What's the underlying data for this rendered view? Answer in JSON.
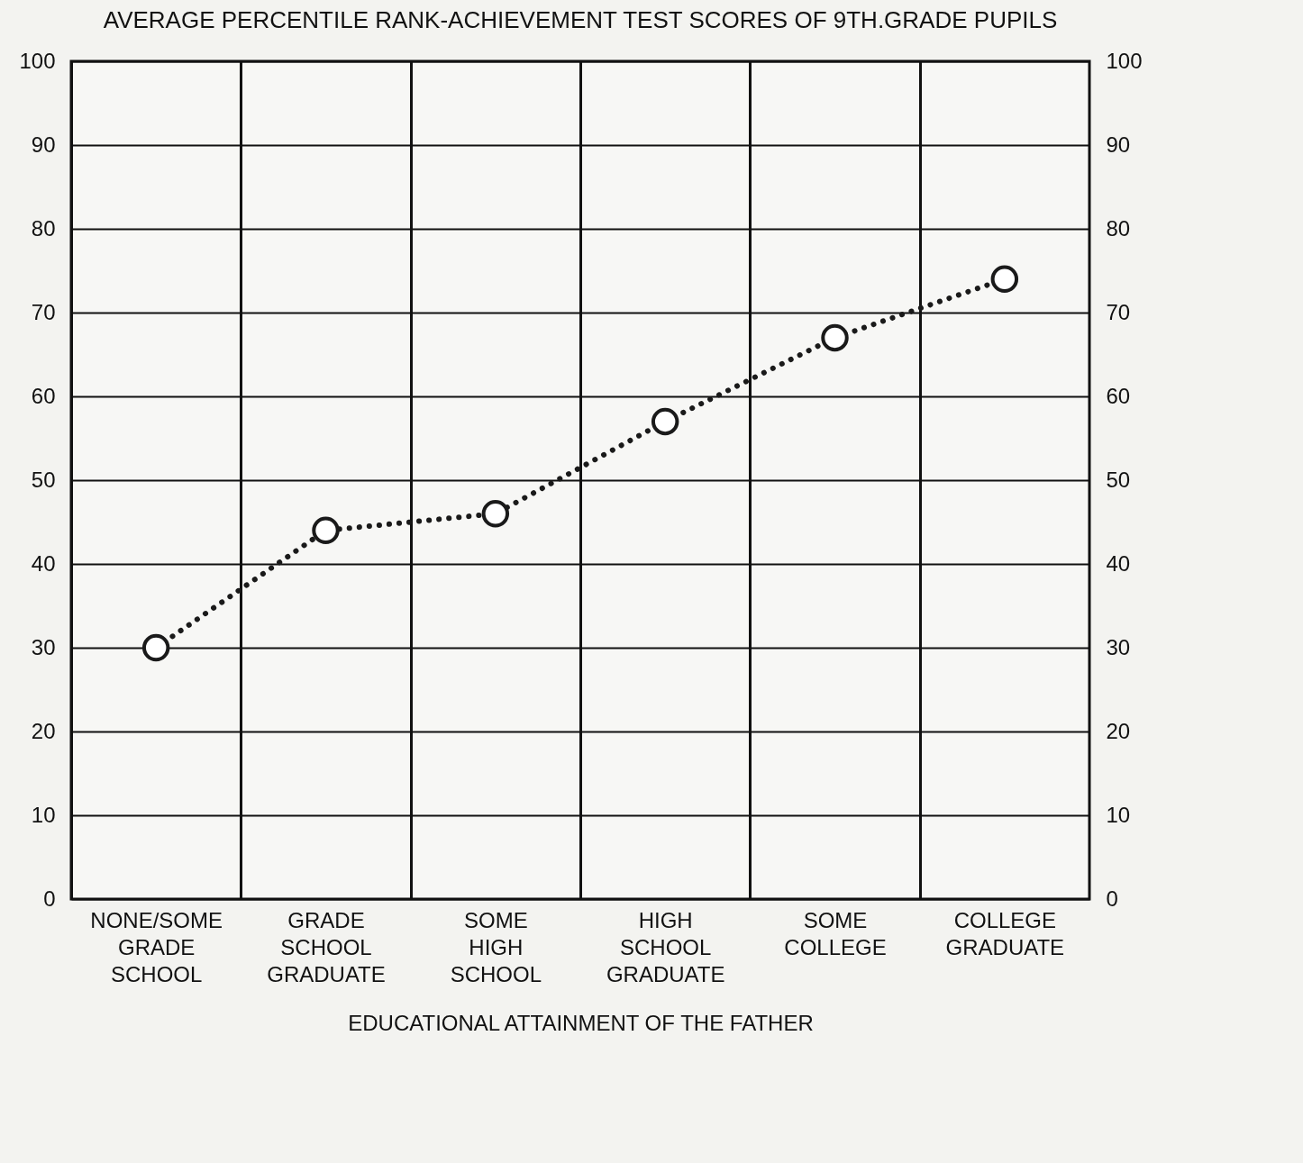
{
  "chart_data": {
    "type": "line",
    "title": "AVERAGE PERCENTILE RANK-ACHIEVEMENT TEST SCORES OF 9TH.GRADE PUPILS",
    "xlabel": "EDUCATIONAL ATTAINMENT OF THE FATHER",
    "categories": [
      "NONE/SOME GRADE SCHOOL",
      "GRADE SCHOOL GRADUATE",
      "SOME HIGH SCHOOL",
      "HIGH SCHOOL GRADUATE",
      "SOME COLLEGE",
      "COLLEGE GRADUATE"
    ],
    "series": [
      {
        "color": "#1a1a1a",
        "values": [
          30,
          44,
          46,
          57,
          67,
          74
        ]
      }
    ],
    "ylim": [
      0,
      100
    ],
    "yticks": [
      0,
      10,
      20,
      30,
      40,
      50,
      60,
      70,
      80,
      90,
      100
    ],
    "y2lim": [
      0,
      100
    ],
    "y2ticks": [
      0,
      10,
      20,
      30,
      40,
      50,
      60,
      70,
      80,
      90,
      100
    ],
    "grid": true,
    "marker": "circle",
    "line_style": "dotted"
  }
}
